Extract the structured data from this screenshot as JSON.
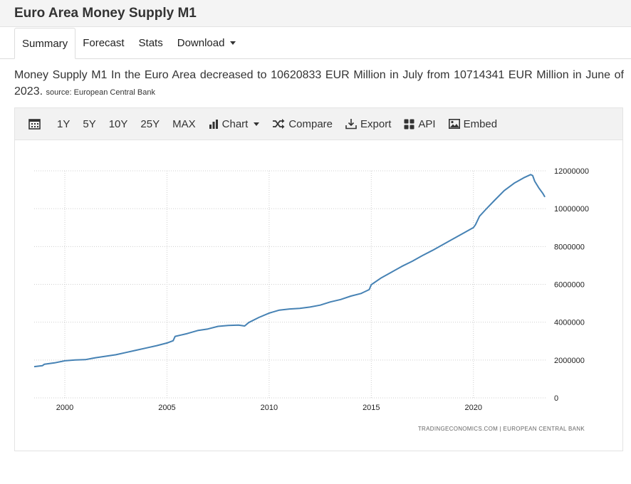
{
  "header": {
    "title": "Euro Area Money Supply M1"
  },
  "tabs": [
    {
      "label": "Summary",
      "active": true
    },
    {
      "label": "Forecast"
    },
    {
      "label": "Stats"
    },
    {
      "label": "Download",
      "dropdown": true
    }
  ],
  "description": {
    "text": "Money Supply M1 In the Euro Area decreased to 10620833 EUR Million in July from 10714341 EUR Million in June of 2023.",
    "source": "source: European Central Bank"
  },
  "toolbar": {
    "calendar_icon": "calendar-icon",
    "ranges": [
      "1Y",
      "5Y",
      "10Y",
      "25Y",
      "MAX"
    ],
    "chart_label": "Chart",
    "compare_label": "Compare",
    "export_label": "Export",
    "api_label": "API",
    "embed_label": "Embed"
  },
  "chart_data": {
    "type": "line",
    "title": "",
    "xlabel": "",
    "ylabel": "",
    "line_color": "#4682b4",
    "grid": true,
    "x_ticks": [
      2000,
      2005,
      2010,
      2015,
      2020
    ],
    "y_ticks": [
      0,
      2000000,
      4000000,
      6000000,
      8000000,
      10000000,
      12000000
    ],
    "xlim": [
      1998.5,
      2023.6
    ],
    "ylim": [
      0,
      12000000
    ],
    "footer": "TRADINGECONOMICS.COM  |  EUROPEAN CENTRAL BANK",
    "series": [
      {
        "x": [
          1998.5,
          1998.9,
          1999.0,
          1999.5,
          2000.0,
          2000.5,
          2001.0,
          2001.5,
          2002.0,
          2002.5,
          2003.0,
          2003.5,
          2004.0,
          2004.5,
          2005.0,
          2005.3,
          2005.4,
          2006.0,
          2006.5,
          2007.0,
          2007.5,
          2008.0,
          2008.5,
          2008.8,
          2009.0,
          2009.5,
          2010.0,
          2010.5,
          2011.0,
          2011.5,
          2012.0,
          2012.5,
          2013.0,
          2013.5,
          2014.0,
          2014.5,
          2014.9,
          2015.0,
          2015.5,
          2016.0,
          2016.5,
          2017.0,
          2017.5,
          2018.0,
          2018.5,
          2019.0,
          2019.5,
          2020.0,
          2020.1,
          2020.3,
          2020.6,
          2021.0,
          2021.5,
          2022.0,
          2022.5,
          2022.8,
          2022.9,
          2023.0,
          2023.2,
          2023.4,
          2023.5
        ],
        "values": [
          1650000,
          1700000,
          1780000,
          1850000,
          1960000,
          2000000,
          2020000,
          2120000,
          2200000,
          2280000,
          2400000,
          2520000,
          2640000,
          2760000,
          2900000,
          3020000,
          3250000,
          3400000,
          3560000,
          3640000,
          3780000,
          3830000,
          3850000,
          3800000,
          3980000,
          4250000,
          4480000,
          4640000,
          4700000,
          4730000,
          4800000,
          4900000,
          5070000,
          5200000,
          5380000,
          5520000,
          5720000,
          5980000,
          6350000,
          6650000,
          6950000,
          7220000,
          7520000,
          7800000,
          8100000,
          8400000,
          8700000,
          9000000,
          9150000,
          9600000,
          9950000,
          10400000,
          10950000,
          11350000,
          11650000,
          11800000,
          11750000,
          11450000,
          11100000,
          10800000,
          10620833
        ]
      }
    ]
  }
}
